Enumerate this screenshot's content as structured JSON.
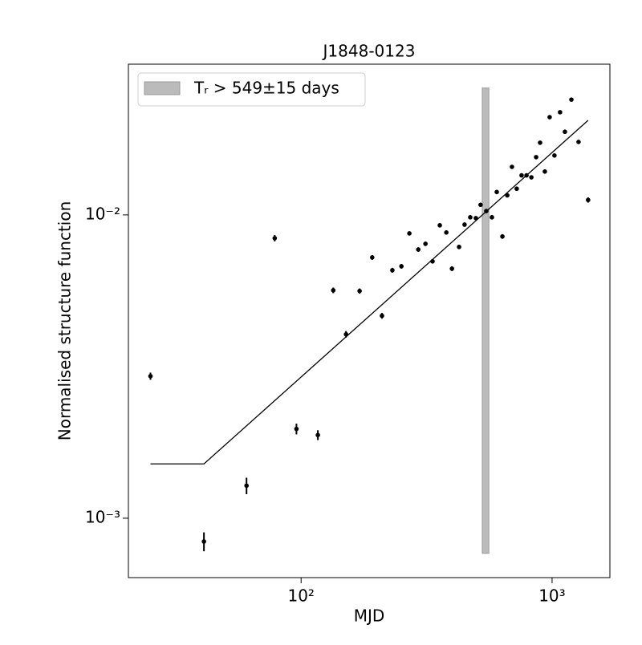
{
  "chart_data": {
    "type": "scatter",
    "title": "J1848-0123",
    "x_label": "MJD",
    "y_label": "Normalised structure function",
    "log_x": true,
    "log_y": true,
    "color": "#000000",
    "xlim": [
      20.5,
      1700
    ],
    "ylim": [
      0.000637,
      0.0314
    ],
    "xticks": [
      {
        "value": 100,
        "label": "10²"
      },
      {
        "value": 1000,
        "label": "10³"
      }
    ],
    "yticks": [
      {
        "value": 0.001,
        "label": "10⁻³"
      },
      {
        "value": 0.01,
        "label": "10⁻²"
      }
    ],
    "x": [
      25.1,
      41.0,
      60.6,
      78.5,
      95.8,
      116.6,
      134.3,
      151,
      171,
      192,
      210,
      231,
      251,
      270,
      293,
      313,
      334,
      357,
      379,
      399,
      426,
      448,
      472,
      497,
      519,
      547,
      576,
      602,
      634,
      663,
      692,
      723,
      756,
      791,
      827,
      864,
      896,
      936,
      978,
      1022,
      1076,
      1125,
      1194,
      1275,
      1392
    ],
    "values": [
      0.00294,
      0.000838,
      0.00128,
      0.00838,
      0.00197,
      0.00188,
      0.00564,
      0.00404,
      0.00561,
      0.00724,
      0.00465,
      0.00657,
      0.00677,
      0.00869,
      0.00769,
      0.00803,
      0.00703,
      0.00924,
      0.00875,
      0.00665,
      0.00784,
      0.00929,
      0.00982,
      0.00976,
      0.0108,
      0.0103,
      0.00982,
      0.0119,
      0.00849,
      0.0116,
      0.0144,
      0.0122,
      0.0135,
      0.0135,
      0.0133,
      0.0155,
      0.0173,
      0.0139,
      0.021,
      0.0157,
      0.0218,
      0.0188,
      0.024,
      0.0174,
      0.0112
    ],
    "errors": [
      8e-05,
      6e-05,
      8e-05,
      0.0002,
      8e-05,
      7e-05,
      0.00012,
      0.0001,
      0.00011,
      0.00013,
      0.0001,
      0.00012,
      0.00012,
      0.00014,
      0.00013,
      0.00013,
      0.00012,
      0.00015,
      0.00014,
      0.00012,
      0.00013,
      0.00015,
      0.00015,
      0.00015,
      0.00017,
      0.00016,
      0.00016,
      0.00018,
      0.00015,
      0.00018,
      0.0002,
      0.00018,
      0.0002,
      0.0002,
      0.0002,
      0.00022,
      0.00024,
      0.0002,
      0.00028,
      0.00022,
      0.00028,
      0.00025,
      0.0003,
      0.00025,
      0.00022
    ],
    "fit": {
      "x": [
        25.1,
        41.0,
        1392
      ],
      "values": [
        0.00151,
        0.00151,
        0.0205
      ],
      "color": "#000000"
    },
    "band": {
      "label": "Tᵣ > 549±15 days",
      "x": [
        527,
        560
      ],
      "y": [
        0.000766,
        0.0262
      ],
      "color": "#bbbbbb"
    },
    "legend": "upper left"
  }
}
